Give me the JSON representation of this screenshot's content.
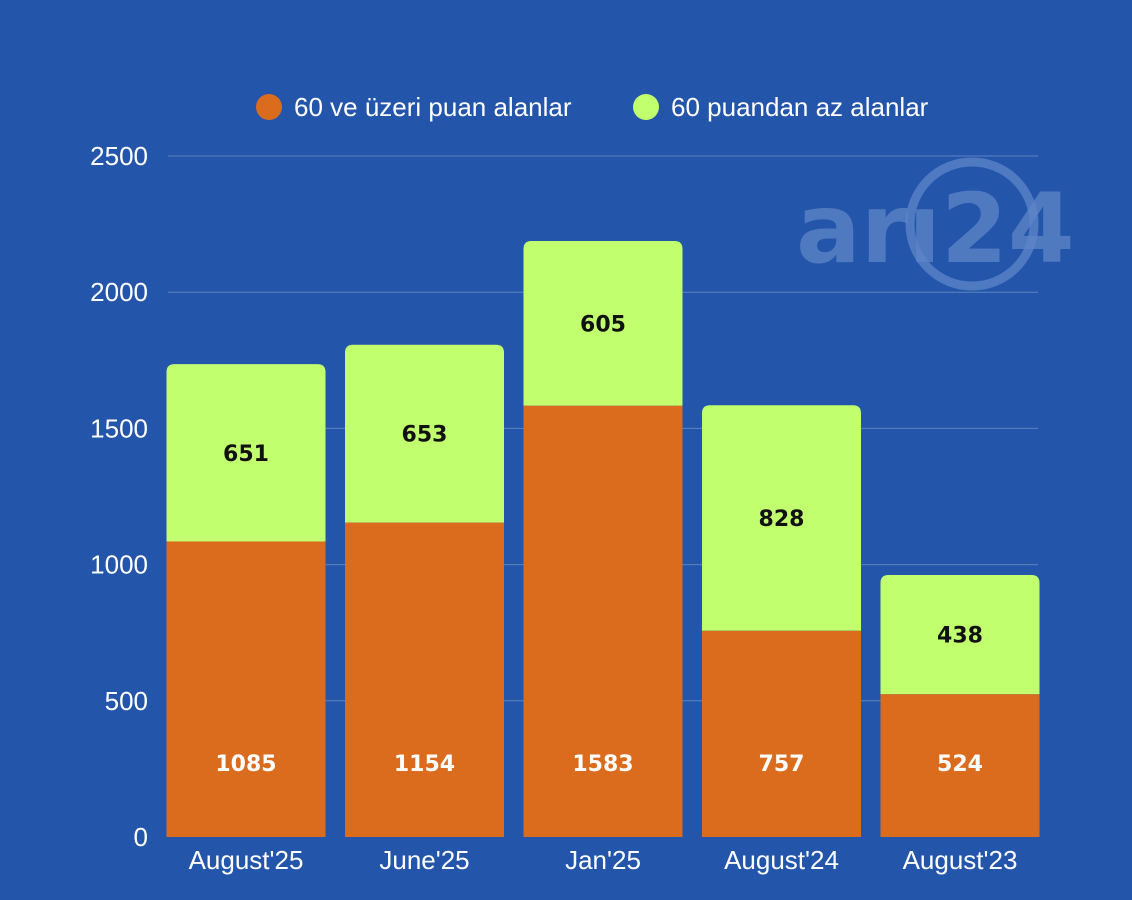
{
  "colors": {
    "background": "#2356ab",
    "series_a": "#db6b1d",
    "series_b": "#c1ff6e",
    "gridline": "#5f82bf",
    "watermark": "#5f86c8",
    "label_on_a": "#ffffff",
    "label_on_b": "#111111"
  },
  "watermark": {
    "text": "arı24"
  },
  "chart_data": {
    "type": "bar",
    "stacked": true,
    "categories": [
      "August'25",
      "June'25",
      "Jan'25",
      "August'24",
      "August'23"
    ],
    "series": [
      {
        "name": "60 ve üzeri puan alanlar",
        "values": [
          1085,
          1154,
          1583,
          757,
          524
        ]
      },
      {
        "name": "60 puandan az alanlar",
        "values": [
          651,
          653,
          605,
          828,
          438
        ]
      }
    ],
    "ylim": [
      0,
      2500
    ],
    "yticks": [
      0,
      500,
      1000,
      1500,
      2000,
      2500
    ],
    "grid": true,
    "legend": "top-center",
    "data_labels": true,
    "title": "",
    "xlabel": "",
    "ylabel": ""
  }
}
